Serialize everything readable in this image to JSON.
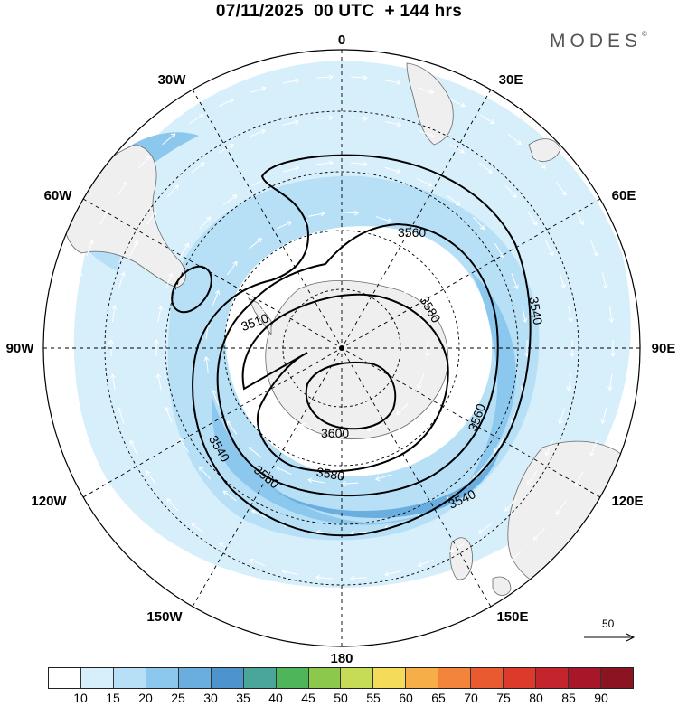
{
  "header": {
    "title": "07/11/2025  00 UTC  + 144 hrs"
  },
  "branding": {
    "name": "MODES",
    "mark": "©"
  },
  "longitude_labels": {
    "top": "0",
    "bottom": "180",
    "left": "90W",
    "right": "90E",
    "w30": "30W",
    "e30": "30E",
    "w60": "60W",
    "e60": "60E",
    "w120": "120W",
    "e120": "120E",
    "w150": "150W",
    "e150": "150E"
  },
  "contours": {
    "label_3540_ne": "3540",
    "label_3540_se": "3540",
    "label_3540_sw": "3540",
    "label_3560_n": "3560",
    "label_3560_e": "3560",
    "label_3560_s": "3560",
    "label_3580_n": "3580",
    "label_3580_s": "3580",
    "label_3600": "3600",
    "label_3510": "3510"
  },
  "reference_vector": {
    "label": "50"
  },
  "colors": {
    "land": "#efefef",
    "coast": "#6a6a6a",
    "contour": "#000000",
    "wind_bins": [
      "#ffffff",
      "#d7eefb",
      "#b7e0f7",
      "#8cc7ee",
      "#6aaedf",
      "#4e94cc",
      "#4aa59a",
      "#4fb55a",
      "#8cc84c",
      "#c6dc57",
      "#f4dc5a",
      "#f6ae48",
      "#f2843c",
      "#ea5a30",
      "#dd3a2c",
      "#c4242c",
      "#a8162a",
      "#8c1421"
    ]
  },
  "colorbar": {
    "ticks": [
      "10",
      "15",
      "20",
      "25",
      "30",
      "35",
      "40",
      "45",
      "50",
      "55",
      "60",
      "65",
      "70",
      "75",
      "80",
      "85",
      "90"
    ]
  }
}
